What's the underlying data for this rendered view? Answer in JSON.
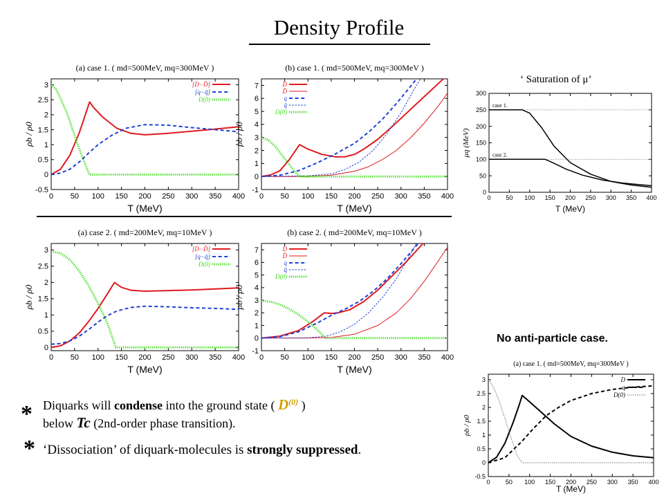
{
  "page": {
    "title": "Density Profile",
    "saturation_caption": "‘ Saturation of μ’",
    "no_anti_caption": "No anti-particle case.",
    "bullets": {
      "star": "*",
      "b1_pre": "Diquarks will ",
      "b1_bold": "condense",
      "b1_mid": " into the ground state ( ",
      "b1_sym": "D",
      "b1_sup": "(0)",
      "b1_post": " )",
      "b1_line2_pre": "below ",
      "b1_tc": "Tc",
      "b1_line2_post": " (2nd-order phase transition).",
      "b2_pre": "‘Dissociation’ of diquark-molecules is ",
      "b2_bold": "strongly suppressed",
      "b2_post": "."
    }
  },
  "chart_data": [
    {
      "id": "c1a",
      "type": "line",
      "title": "(a) case 1. ( md=500MeV, mq=300MeV )",
      "xlabel": "T (MeV)",
      "ylabel": "ρb / ρ0",
      "xlim": [
        0,
        400
      ],
      "ylim": [
        -0.5,
        3.2
      ],
      "xticks": [
        0,
        50,
        100,
        150,
        200,
        250,
        300,
        350,
        400
      ],
      "yticks": [
        -0.5,
        0,
        0.5,
        1,
        1.5,
        2,
        2.5,
        3
      ],
      "series": [
        {
          "name": "[D−D̄]",
          "color": "#e0191e",
          "dash": "solid",
          "width": 2,
          "x": [
            0,
            20,
            40,
            60,
            75,
            82,
            90,
            110,
            140,
            170,
            200,
            250,
            300,
            350,
            400
          ],
          "y": [
            0,
            0.18,
            0.65,
            1.4,
            2.1,
            2.43,
            2.25,
            1.92,
            1.55,
            1.38,
            1.33,
            1.38,
            1.45,
            1.52,
            1.6
          ]
        },
        {
          "name": "[q−q̄]",
          "color": "#1f3fd4",
          "dash": "dashed",
          "width": 2,
          "x": [
            0,
            20,
            40,
            60,
            80,
            100,
            130,
            160,
            200,
            250,
            300,
            350,
            400
          ],
          "y": [
            0,
            0.05,
            0.18,
            0.42,
            0.72,
            1.0,
            1.32,
            1.55,
            1.67,
            1.65,
            1.57,
            1.5,
            1.43
          ]
        },
        {
          "name": "D(0)",
          "color": "#3ddc1a",
          "dash": "dotted",
          "width": 3,
          "x": [
            0,
            10,
            20,
            35,
            50,
            65,
            80,
            82,
            400
          ],
          "y": [
            3.0,
            2.85,
            2.55,
            2.0,
            1.3,
            0.65,
            0.05,
            0,
            0
          ]
        }
      ]
    },
    {
      "id": "c1b",
      "type": "line",
      "title": "(b) case 1. ( md=500MeV, mq=300MeV )",
      "xlabel": "T (MeV)",
      "ylabel": "ρb / ρ0",
      "xlim": [
        0,
        400
      ],
      "ylim": [
        -1,
        7.5
      ],
      "xticks": [
        0,
        50,
        100,
        150,
        200,
        250,
        300,
        350,
        400
      ],
      "yticks": [
        -1,
        0,
        1,
        2,
        3,
        4,
        5,
        6,
        7
      ],
      "series": [
        {
          "name": "D",
          "color": "#e0191e",
          "dash": "solid",
          "width": 2,
          "x": [
            0,
            20,
            40,
            60,
            82,
            100,
            130,
            160,
            180,
            200,
            220,
            250,
            280,
            310,
            340,
            370,
            400
          ],
          "y": [
            0,
            0.12,
            0.45,
            1.3,
            2.45,
            2.1,
            1.7,
            1.5,
            1.52,
            1.7,
            2.1,
            2.85,
            3.8,
            4.8,
            5.8,
            6.8,
            7.8
          ]
        },
        {
          "name": "D̄",
          "color": "#e0191e",
          "dash": "solid",
          "width": 1,
          "x": [
            0,
            60,
            100,
            150,
            200,
            230,
            260,
            290,
            320,
            350,
            380,
            400
          ],
          "y": [
            0,
            0,
            0.01,
            0.1,
            0.4,
            0.75,
            1.3,
            2.0,
            2.95,
            4.1,
            5.4,
            6.4
          ]
        },
        {
          "name": "q",
          "color": "#1f3fd4",
          "dash": "dashed",
          "width": 2,
          "x": [
            0,
            40,
            80,
            120,
            160,
            200,
            230,
            260,
            290,
            320,
            340
          ],
          "y": [
            0,
            0.1,
            0.45,
            1.05,
            1.75,
            2.55,
            3.4,
            4.4,
            5.6,
            6.9,
            7.8
          ]
        },
        {
          "name": "q̄",
          "color": "#1f3fd4",
          "dash": "dashed",
          "width": 1,
          "x": [
            0,
            100,
            150,
            180,
            210,
            240,
            270,
            300,
            330,
            350
          ],
          "y": [
            0,
            0.05,
            0.2,
            0.55,
            1.1,
            2.0,
            3.3,
            4.9,
            6.8,
            8.0
          ]
        },
        {
          "name": "D(0)",
          "color": "#3ddc1a",
          "dash": "dotted",
          "width": 3,
          "x": [
            0,
            15,
            30,
            45,
            60,
            75,
            82,
            400
          ],
          "y": [
            3.0,
            2.8,
            2.3,
            1.6,
            0.9,
            0.25,
            0,
            0
          ]
        }
      ]
    },
    {
      "id": "c2a",
      "type": "line",
      "title": "(a) case 2. ( md=200MeV, mq=10MeV )",
      "xlabel": "T (MeV)",
      "ylabel": "ρb / ρ0",
      "xlim": [
        0,
        400
      ],
      "ylim": [
        -0.1,
        3.2
      ],
      "xticks": [
        0,
        50,
        100,
        150,
        200,
        250,
        300,
        350,
        400
      ],
      "yticks": [
        0,
        0.5,
        1,
        1.5,
        2,
        2.5,
        3
      ],
      "series": [
        {
          "name": "[D−D̄]",
          "color": "#e0191e",
          "dash": "solid",
          "width": 2,
          "x": [
            0,
            20,
            40,
            60,
            80,
            100,
            120,
            135,
            150,
            170,
            200,
            250,
            300,
            350,
            400
          ],
          "y": [
            0,
            0.05,
            0.2,
            0.45,
            0.8,
            1.2,
            1.65,
            2.0,
            1.85,
            1.76,
            1.73,
            1.75,
            1.77,
            1.8,
            1.83
          ]
        },
        {
          "name": "[q−q̄]",
          "color": "#1f3fd4",
          "dash": "dashed",
          "width": 2,
          "x": [
            0,
            20,
            40,
            60,
            80,
            100,
            120,
            140,
            170,
            200,
            250,
            300,
            350,
            400
          ],
          "y": [
            0.1,
            0.12,
            0.2,
            0.35,
            0.55,
            0.78,
            0.98,
            1.12,
            1.23,
            1.27,
            1.25,
            1.22,
            1.2,
            1.17
          ]
        },
        {
          "name": "D(0)",
          "color": "#3ddc1a",
          "dash": "dotted",
          "width": 3,
          "x": [
            0,
            20,
            40,
            60,
            80,
            100,
            120,
            138,
            400
          ],
          "y": [
            2.95,
            2.9,
            2.7,
            2.35,
            1.9,
            1.35,
            0.75,
            0,
            0
          ]
        }
      ]
    },
    {
      "id": "c2b",
      "type": "line",
      "title": "(b) case 2. ( md=200MeV, mq=10MeV )",
      "xlabel": "T (MeV)",
      "ylabel": "ρb / ρ0",
      "xlim": [
        0,
        400
      ],
      "ylim": [
        -1,
        7.5
      ],
      "xticks": [
        0,
        50,
        100,
        150,
        200,
        250,
        300,
        350,
        400
      ],
      "yticks": [
        -1,
        0,
        1,
        2,
        3,
        4,
        5,
        6,
        7
      ],
      "series": [
        {
          "name": "D",
          "color": "#e0191e",
          "dash": "solid",
          "width": 2,
          "x": [
            0,
            40,
            80,
            110,
            135,
            150,
            165,
            190,
            220,
            250,
            280,
            310,
            340,
            360
          ],
          "y": [
            0,
            0.15,
            0.6,
            1.3,
            2.0,
            1.95,
            2.0,
            2.25,
            2.9,
            3.8,
            4.9,
            6.0,
            7.2,
            8.0
          ]
        },
        {
          "name": "D̄",
          "color": "#e0191e",
          "dash": "solid",
          "width": 1,
          "x": [
            0,
            100,
            150,
            200,
            250,
            290,
            320,
            350,
            380,
            400
          ],
          "y": [
            0,
            0,
            0.05,
            0.3,
            1.0,
            2.0,
            3.1,
            4.5,
            6.1,
            7.2
          ]
        },
        {
          "name": "q",
          "color": "#1f3fd4",
          "dash": "dashed",
          "width": 2,
          "x": [
            0,
            40,
            80,
            120,
            150,
            180,
            210,
            240,
            270,
            300,
            330,
            350
          ],
          "y": [
            0,
            0.12,
            0.5,
            1.2,
            1.8,
            2.3,
            2.9,
            3.7,
            4.7,
            5.9,
            7.2,
            8.0
          ]
        },
        {
          "name": "q̄",
          "color": "#1f3fd4",
          "dash": "dashed",
          "width": 1,
          "x": [
            0,
            100,
            140,
            170,
            200,
            230,
            260,
            290,
            320,
            340
          ],
          "y": [
            0,
            0.02,
            0.15,
            0.5,
            1.1,
            2.0,
            3.2,
            4.7,
            6.6,
            8.0
          ]
        },
        {
          "name": "D(0)",
          "color": "#3ddc1a",
          "dash": "dotted",
          "width": 3,
          "x": [
            0,
            20,
            40,
            60,
            80,
            100,
            120,
            138,
            400
          ],
          "y": [
            2.95,
            2.88,
            2.65,
            2.3,
            1.85,
            1.3,
            0.65,
            0,
            0
          ]
        }
      ]
    },
    {
      "id": "mu",
      "type": "line",
      "title": "",
      "xlabel": "T (MeV)",
      "ylabel": "μq (MeV)",
      "xlim": [
        0,
        400
      ],
      "ylim": [
        0,
        300
      ],
      "xticks": [
        0,
        50,
        100,
        150,
        200,
        250,
        300,
        350,
        400
      ],
      "yticks": [
        0,
        50,
        100,
        150,
        200,
        250,
        300
      ],
      "annotations": [
        {
          "text": "case 1.",
          "x": 5,
          "y": 258
        },
        {
          "text": "case 2.",
          "x": 5,
          "y": 108
        }
      ],
      "reference_lines": [
        {
          "y": 250
        },
        {
          "y": 100
        }
      ],
      "series": [
        {
          "name": "case 1.",
          "color": "#000000",
          "dash": "solid",
          "width": 1.5,
          "x": [
            0,
            50,
            82,
            100,
            130,
            160,
            200,
            250,
            300,
            350,
            400
          ],
          "y": [
            250,
            250,
            250,
            240,
            195,
            140,
            90,
            55,
            33,
            22,
            15
          ]
        },
        {
          "name": "case 2.",
          "color": "#000000",
          "dash": "solid",
          "width": 1.5,
          "x": [
            0,
            100,
            138,
            160,
            190,
            230,
            280,
            330,
            400
          ],
          "y": [
            100,
            100,
            100,
            88,
            70,
            52,
            37,
            28,
            20
          ]
        }
      ]
    },
    {
      "id": "noanti",
      "type": "line",
      "title": "(a) case 1. ( md=500MeV, mq=300MeV )",
      "xlabel": "T (MeV)",
      "ylabel": "ρb / ρ0",
      "xlim": [
        0,
        400
      ],
      "ylim": [
        -0.5,
        3.2
      ],
      "xticks": [
        0,
        50,
        100,
        150,
        200,
        250,
        300,
        350,
        400
      ],
      "yticks": [
        -0.5,
        0,
        0.5,
        1,
        1.5,
        2,
        2.5,
        3
      ],
      "series": [
        {
          "name": "D",
          "color": "#000000",
          "dash": "solid",
          "width": 2,
          "x": [
            0,
            20,
            40,
            60,
            75,
            82,
            100,
            130,
            160,
            200,
            250,
            300,
            350,
            400
          ],
          "y": [
            0,
            0.2,
            0.7,
            1.45,
            2.1,
            2.43,
            2.2,
            1.8,
            1.4,
            0.95,
            0.6,
            0.38,
            0.25,
            0.18
          ]
        },
        {
          "name": "q",
          "color": "#000000",
          "dash": "dashed",
          "width": 2,
          "x": [
            0,
            40,
            80,
            110,
            140,
            170,
            200,
            250,
            300,
            350,
            400
          ],
          "y": [
            0,
            0.18,
            0.75,
            1.25,
            1.7,
            2.0,
            2.25,
            2.5,
            2.65,
            2.73,
            2.78
          ]
        },
        {
          "name": "D(0)",
          "color": "#555555",
          "dash": "dotted",
          "width": 1,
          "x": [
            0,
            10,
            25,
            40,
            55,
            70,
            82,
            400
          ],
          "y": [
            3.0,
            2.8,
            2.3,
            1.6,
            0.9,
            0.25,
            0,
            0
          ]
        }
      ]
    }
  ]
}
